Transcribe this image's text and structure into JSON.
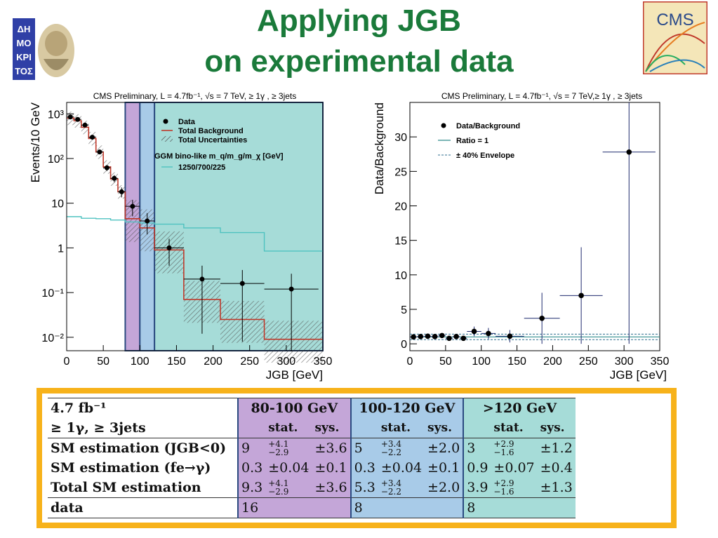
{
  "slide": {
    "title_line1": "Applying JGB",
    "title_line2": "on experimental data",
    "title_color": "#1a7a3a",
    "left_logo": "democritus-logo",
    "right_logo": "cms-logo",
    "right_logo_text": "CMS",
    "left_logo_text": "ΔΗΜΟΚΡΙΤΟΣ"
  },
  "chart_data": [
    {
      "type": "line",
      "title": "CMS Preliminary, L = 4.7fb⁻¹, √s = 7 TeV, ≥ 1γ , ≥ 3jets",
      "xlabel": "JGB [GeV]",
      "ylabel": "Events/10 GeV",
      "xlim": [
        0,
        350
      ],
      "ylim": [
        0.005,
        1800
      ],
      "yscale": "log",
      "xticks": [
        0,
        50,
        100,
        150,
        200,
        250,
        300,
        350
      ],
      "yticks": [
        {
          "v": 1000,
          "label": "10³"
        },
        {
          "v": 100,
          "label": "10²"
        },
        {
          "v": 10,
          "label": "10"
        },
        {
          "v": 1,
          "label": "1"
        },
        {
          "v": 0.1,
          "label": "10⁻¹"
        },
        {
          "v": 0.01,
          "label": "10⁻²"
        }
      ],
      "legend": [
        "Data",
        "Total Background",
        "Total Uncertainties",
        "GGM bino-like m_q/m_g/m_χ [GeV]",
        "1250/700/225"
      ],
      "legend_position": "top-right",
      "bands": [
        {
          "x0": 80,
          "x1": 100,
          "color": "#c4a6d8"
        },
        {
          "x0": 100,
          "x1": 120,
          "color": "#a8cbe8"
        },
        {
          "x0": 120,
          "x1": 350,
          "color": "#a6dcd8"
        }
      ],
      "data": {
        "x": [
          5,
          15,
          25,
          35,
          45,
          55,
          65,
          75,
          90,
          110,
          140,
          185,
          240,
          307
        ],
        "y": [
          850,
          750,
          560,
          300,
          140,
          62,
          36,
          18,
          8.5,
          4,
          1,
          0.2,
          0.16,
          0.12
        ],
        "yerr_lo": [
          0.93,
          0.93,
          0.93,
          0.93,
          0.9,
          0.85,
          0.82,
          0.75,
          0.6,
          0.5,
          0.4,
          0.06,
          0.05,
          0.04
        ],
        "yerr_hi": [
          1.07,
          1.07,
          1.07,
          1.07,
          1.1,
          1.15,
          1.18,
          1.25,
          1.4,
          1.5,
          1.6,
          2.0,
          2.0,
          2.2
        ],
        "xerr": [
          5,
          5,
          5,
          5,
          5,
          5,
          5,
          5,
          10,
          10,
          20,
          25,
          30,
          37
        ]
      },
      "background": {
        "edges": [
          0,
          10,
          20,
          30,
          40,
          50,
          60,
          70,
          80,
          100,
          120,
          160,
          210,
          270,
          350
        ],
        "values": [
          800,
          700,
          500,
          280,
          140,
          65,
          35,
          18,
          4.5,
          2.8,
          0.9,
          0.07,
          0.025,
          0.009
        ],
        "color": "#c0392b"
      },
      "signal": {
        "edges": [
          0,
          20,
          40,
          60,
          80,
          100,
          120,
          160,
          210,
          270,
          350
        ],
        "values": [
          5,
          4.6,
          4.5,
          4.2,
          3.8,
          3.6,
          3.4,
          2.8,
          2.2,
          0.85,
          0.85
        ],
        "color": "#4fc2c0"
      }
    },
    {
      "type": "scatter",
      "title": "CMS Preliminary, L = 4.7fb⁻¹, √s = 7 TeV,≥ 1γ , ≥ 3jets",
      "xlabel": "JGB [GeV]",
      "ylabel": "Data/Background",
      "xlim": [
        0,
        350
      ],
      "ylim": [
        -1,
        35
      ],
      "xticks": [
        0,
        50,
        100,
        150,
        200,
        250,
        300,
        350
      ],
      "yticks": [
        0,
        5,
        10,
        15,
        20,
        25,
        30
      ],
      "legend": [
        "Data/Background",
        "Ratio = 1",
        "± 40% Envelope"
      ],
      "legend_position": "top-left",
      "data": {
        "x": [
          5,
          15,
          25,
          35,
          45,
          55,
          65,
          75,
          90,
          110,
          140,
          185,
          240,
          307
        ],
        "y": [
          1.0,
          1.05,
          1.1,
          1.05,
          1.2,
          0.8,
          1.05,
          0.8,
          1.8,
          1.5,
          1.1,
          3.7,
          7.0,
          27.8
        ],
        "yerr": [
          0.1,
          0.1,
          0.1,
          0.1,
          0.15,
          0.2,
          0.2,
          0.25,
          0.7,
          0.8,
          0.9,
          3.7,
          7.0,
          27.8
        ],
        "xerr": [
          5,
          5,
          5,
          5,
          5,
          5,
          5,
          5,
          10,
          10,
          20,
          25,
          30,
          37
        ]
      },
      "ratio_line": 1,
      "envelope": [
        0.6,
        1.4
      ]
    }
  ],
  "table": {
    "head1": {
      "lumi": "4.7 fb⁻¹",
      "g1": "80-100 GeV",
      "g2": "100-120 GeV",
      "g3": ">120 GeV"
    },
    "head2": {
      "cuts": "≥ 1γ, ≥ 3jets",
      "stat": "stat.",
      "sys": "sys."
    },
    "rows": [
      {
        "label": "SM estimation (JGB<0)",
        "v1": "9",
        "s1_hi": "+4.1",
        "s1_lo": "−2.9",
        "y1": "±3.6",
        "v2": "5",
        "s2_hi": "+3.4",
        "s2_lo": "−2.2",
        "y2": "±2.0",
        "v3": "3",
        "s3_hi": "+2.9",
        "s3_lo": "−1.6",
        "y3": "±1.2"
      },
      {
        "label": "SM estimation (fe→γ)",
        "v1": "0.3",
        "s1": "±0.04",
        "y1": "±0.1",
        "v2": "0.3",
        "s2": "±0.04",
        "y2": "±0.1",
        "v3": "0.9",
        "s3": "±0.07",
        "y3": "±0.4"
      },
      {
        "label": "Total SM estimation",
        "v1": "9.3",
        "s1_hi": "+4.1",
        "s1_lo": "−2.9",
        "y1": "±3.6",
        "v2": "5.3",
        "s2_hi": "+3.4",
        "s2_lo": "−2.2",
        "y2": "±2.0",
        "v3": "3.9",
        "s3_hi": "+2.9",
        "s3_lo": "−1.6",
        "y3": "±1.3"
      },
      {
        "label": "data",
        "v1": "16",
        "v2": "8",
        "v3": "8"
      }
    ]
  }
}
